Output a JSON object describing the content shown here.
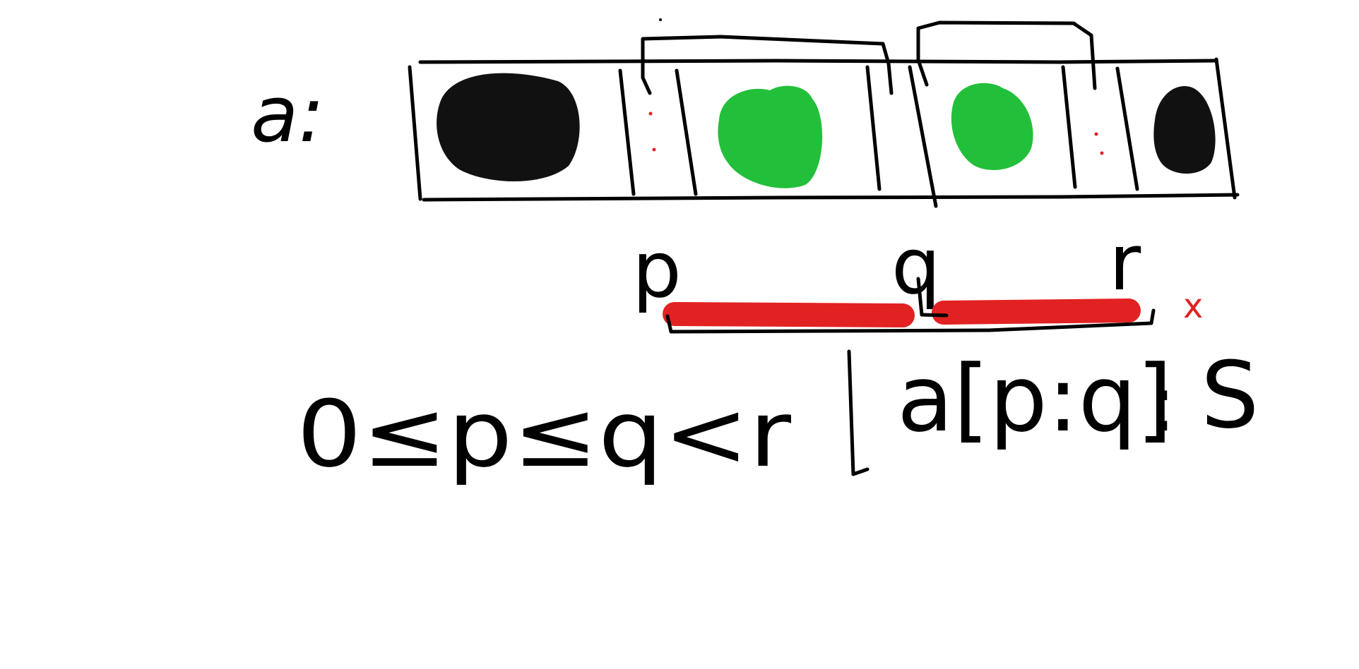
{
  "colors": {
    "ink": "#000000",
    "black_element": "#111111",
    "green_element": "#22c03a",
    "highlight": "#e22222",
    "marker_red": "#e22222",
    "background": "#ffffff"
  },
  "array": {
    "label": "a:",
    "cells": [
      {
        "content": "black-dot"
      },
      {
        "content": "red-dots"
      },
      {
        "content": "green-dot"
      },
      {
        "content": "empty"
      },
      {
        "content": "green-dot"
      },
      {
        "content": "red-dots"
      },
      {
        "content": "black-dot"
      }
    ]
  },
  "pointers": {
    "p": "p",
    "q": "q",
    "r": "r",
    "end_mark": "x"
  },
  "condition": {
    "inequality": "0≤p≤q<r",
    "separator": "|",
    "subarray": "a[p:q]",
    "colon": ":",
    "sum": "S"
  }
}
